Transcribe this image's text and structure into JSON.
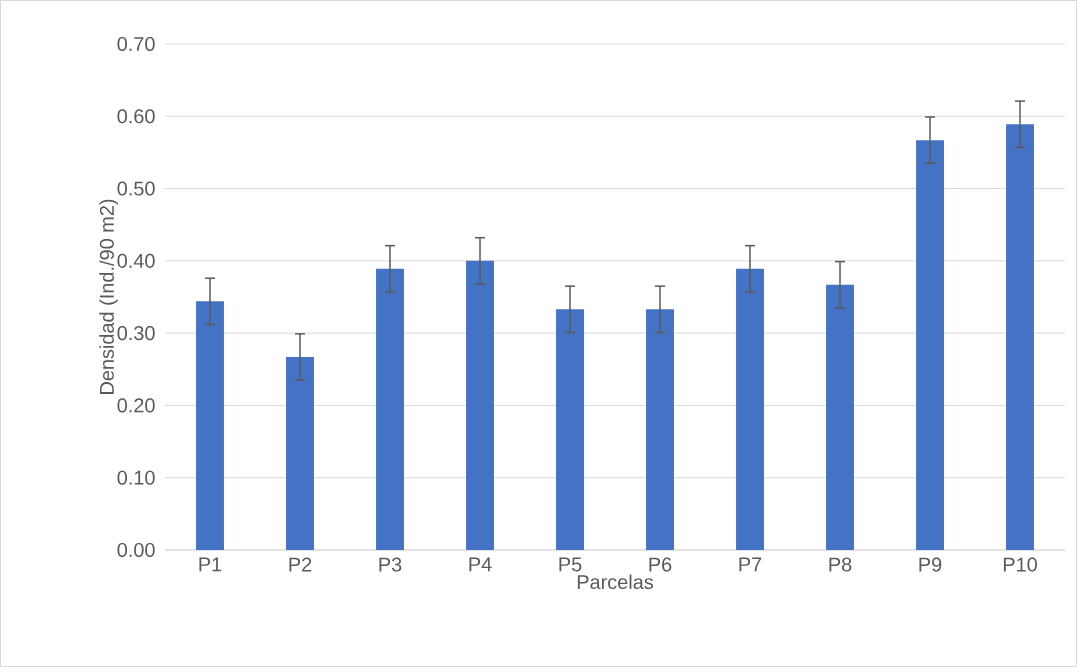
{
  "chart_data": {
    "type": "bar",
    "xlabel": "Parcelas",
    "ylabel": "Densidad (Ind./90 m2)",
    "categories": [
      "P1",
      "P2",
      "P3",
      "P4",
      "P5",
      "P6",
      "P7",
      "P8",
      "P9",
      "P10"
    ],
    "values": [
      0.344,
      0.267,
      0.389,
      0.4,
      0.333,
      0.333,
      0.389,
      0.367,
      0.567,
      0.589
    ],
    "errors": [
      0.032,
      0.032,
      0.032,
      0.032,
      0.032,
      0.032,
      0.032,
      0.032,
      0.032,
      0.032
    ],
    "color": "#4472c4",
    "ylim": [
      0,
      0.7
    ],
    "yticks": [
      {
        "value": 0,
        "label": "0.00"
      },
      {
        "value": 0.1,
        "label": "0.10"
      },
      {
        "value": 0.2,
        "label": "0.20"
      },
      {
        "value": 0.3,
        "label": "0.30"
      },
      {
        "value": 0.4,
        "label": "0.40"
      },
      {
        "value": 0.5,
        "label": "0.50"
      },
      {
        "value": 0.6,
        "label": "0.60"
      },
      {
        "value": 0.7,
        "label": "0.70"
      }
    ],
    "grid": "y"
  }
}
